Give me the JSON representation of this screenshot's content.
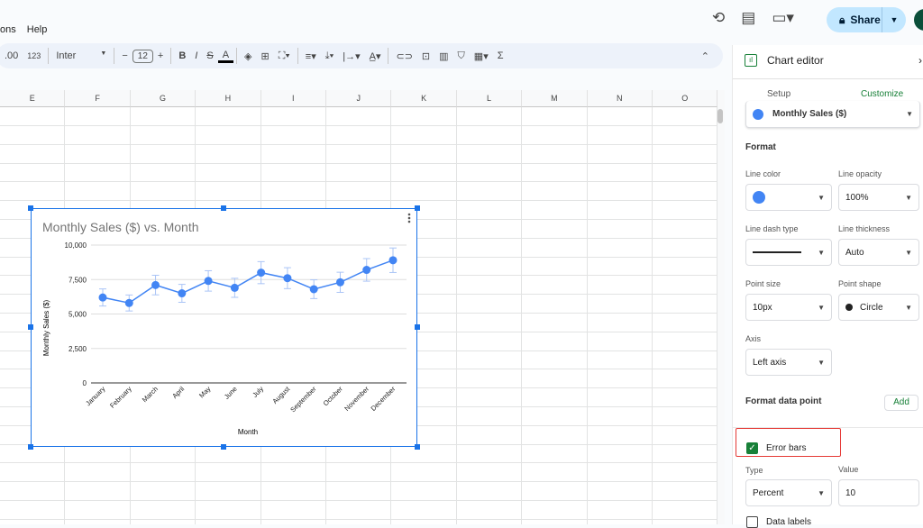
{
  "menu": {
    "items": [
      "ons",
      "Help"
    ]
  },
  "header": {
    "icons": [
      "history-icon",
      "comment-icon",
      "video-call-icon"
    ],
    "share_label": "Share",
    "avatar_color": "#0b4f3a"
  },
  "toolbar": {
    "number_format": "123",
    "font": "Inter",
    "font_size": "12",
    "decimal_icon": ".00"
  },
  "grid": {
    "columns": [
      "E",
      "F",
      "G",
      "H",
      "I",
      "J",
      "K",
      "L",
      "M",
      "N",
      "O"
    ]
  },
  "chart_data": {
    "type": "line",
    "title": "Monthly Sales ($) vs. Month",
    "xlabel": "Month",
    "ylabel": "Monthly Sales ($)",
    "categories": [
      "January",
      "February",
      "March",
      "April",
      "May",
      "June",
      "July",
      "August",
      "September",
      "October",
      "November",
      "December"
    ],
    "values": [
      6200,
      5800,
      7100,
      6500,
      7400,
      6900,
      8000,
      7600,
      6800,
      7300,
      8200,
      8900
    ],
    "error_bars": {
      "type": "percent",
      "value": 10
    },
    "ylim": [
      0,
      10000
    ],
    "yticks": [
      "0",
      "2,500",
      "5,000",
      "7,500",
      "10,000"
    ],
    "grid": true,
    "legend": "none",
    "color": "#4285f4"
  },
  "editor": {
    "title": "Chart editor",
    "tabs": [
      {
        "label": "Setup"
      },
      {
        "label": "Customize"
      }
    ],
    "series": "Monthly Sales ($)",
    "format_heading": "Format",
    "line_color_label": "Line color",
    "line_color": "#4285f4",
    "line_opacity_label": "Line opacity",
    "line_opacity": "100%",
    "dash_label": "Line dash type",
    "thickness_label": "Line thickness",
    "thickness": "Auto",
    "point_size_label": "Point size",
    "point_size": "10px",
    "point_shape_label": "Point shape",
    "point_shape": "Circle",
    "axis_label": "Axis",
    "axis": "Left axis",
    "format_point": "Format data point",
    "add": "Add",
    "error_bars": "Error bars",
    "error_bars_checked": true,
    "type_label": "Type",
    "type": "Percent",
    "value_label": "Value",
    "value": "10",
    "data_labels": "Data labels",
    "data_labels_checked": false
  }
}
